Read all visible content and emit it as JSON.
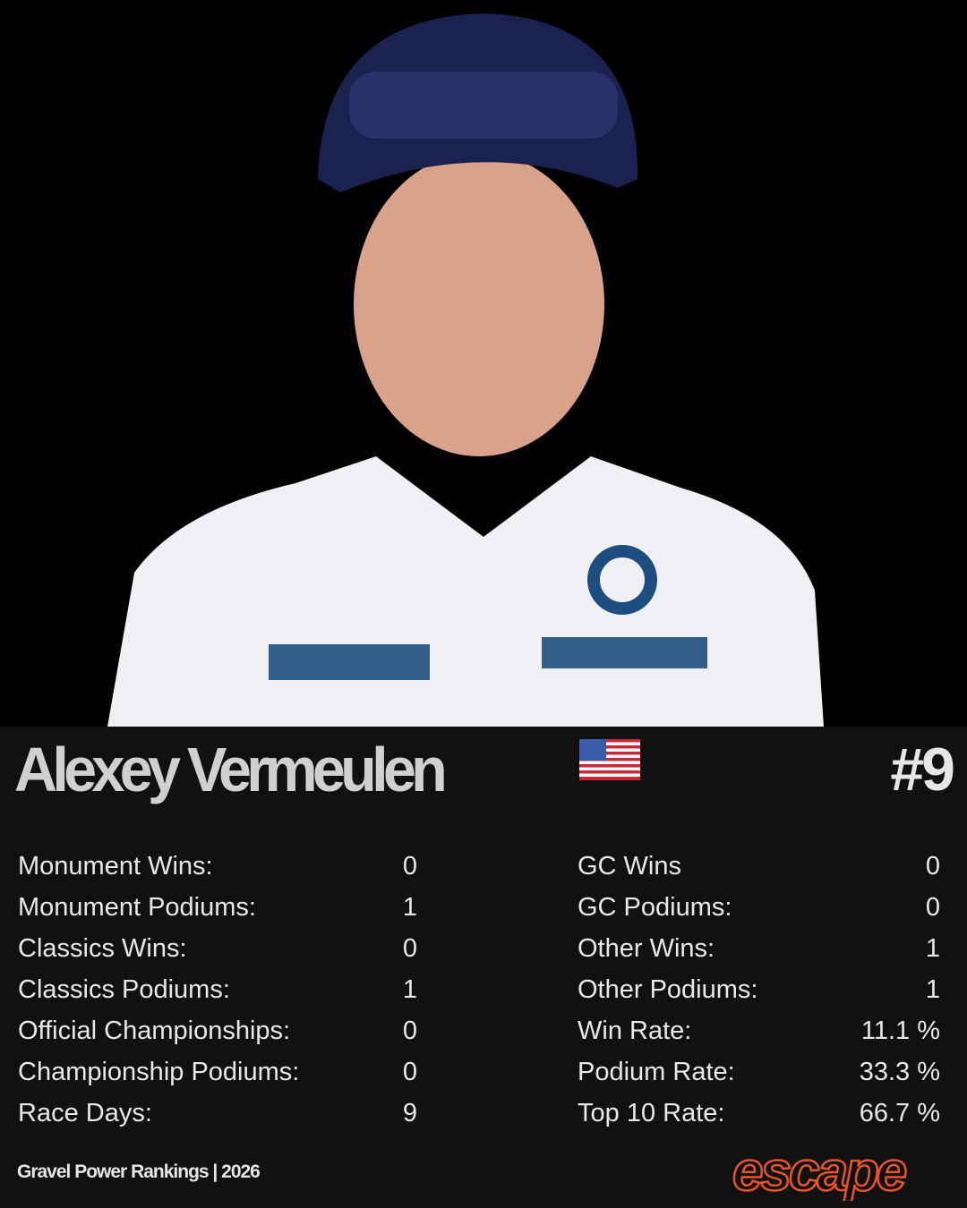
{
  "rider": {
    "name": "Alexey Vermeulen",
    "flag": "us-flag-icon",
    "rank": "#9"
  },
  "stats_left": [
    {
      "label": "Monument Wins:",
      "value": "0"
    },
    {
      "label": "Monument Podiums:",
      "value": "1"
    },
    {
      "label": "Classics Wins:",
      "value": "0"
    },
    {
      "label": "Classics Podiums:",
      "value": "1"
    },
    {
      "label": "Official Championships:",
      "value": "0"
    },
    {
      "label": "Championship Podiums:",
      "value": "0"
    },
    {
      "label": "Race Days:",
      "value": "9"
    }
  ],
  "stats_right": [
    {
      "label": "GC Wins",
      "value": "0"
    },
    {
      "label": "GC Podiums:",
      "value": "0"
    },
    {
      "label": "Other Wins:",
      "value": "1"
    },
    {
      "label": "Other Podiums:",
      "value": "1"
    },
    {
      "label": "Win Rate:",
      "value": "11.1 %"
    },
    {
      "label": "Podium Rate:",
      "value": "33.3 %"
    },
    {
      "label": "Top 10 Rate:",
      "value": "66.7 %"
    }
  ],
  "footer": {
    "text": "Gravel Power Rankings | 2026",
    "logo": "escape"
  },
  "colors": {
    "background": "#111111",
    "accent": "#e8542a"
  }
}
